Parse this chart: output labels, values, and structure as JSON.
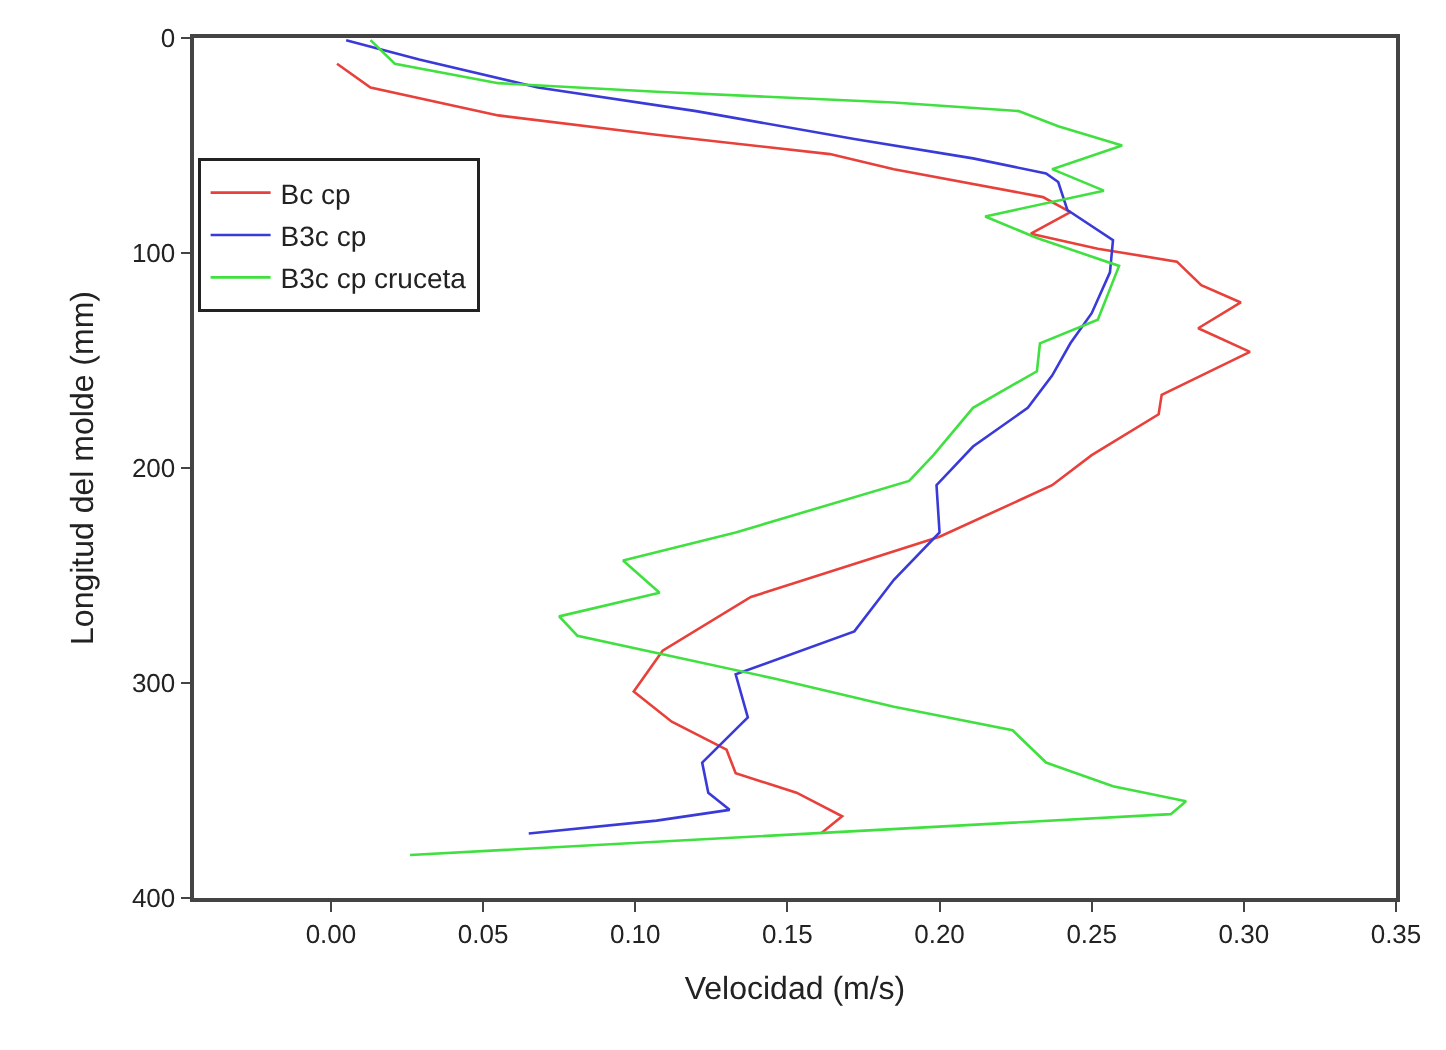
{
  "chart_data": {
    "type": "line",
    "xlabel": "Velocidad (m/s)",
    "ylabel": "Longitud del molde (mm)",
    "xlim": [
      -0.045,
      0.35
    ],
    "xticks": [
      {
        "value": 0,
        "label": "0.00"
      },
      {
        "value": 0.05,
        "label": "0.05"
      },
      {
        "value": 0.1,
        "label": "0.10"
      },
      {
        "value": 0.15,
        "label": "0.15"
      },
      {
        "value": 0.2,
        "label": "0.20"
      },
      {
        "value": 0.25,
        "label": "0.25"
      },
      {
        "value": 0.3,
        "label": "0.30"
      },
      {
        "value": 0.35,
        "label": "0.35"
      }
    ],
    "ylim": [
      400,
      0
    ],
    "yticks": [
      0,
      100,
      200,
      300,
      400
    ],
    "legend": "top left",
    "marker": "none",
    "line_style": "solid",
    "series": [
      {
        "name": "Bc cp",
        "color": "#e8403a",
        "x": [
          0.002,
          0.013,
          0.055,
          0.107,
          0.164,
          0.185,
          0.234,
          0.243,
          0.23,
          0.252,
          0.278,
          0.286,
          0.299,
          0.285,
          0.302,
          0.273,
          0.272,
          0.25,
          0.237,
          0.2,
          0.138,
          0.109,
          0.0995,
          0.112,
          0.13,
          0.133,
          0.153,
          0.168,
          0.161
        ],
        "values": [
          12,
          23,
          36,
          45,
          54,
          61,
          74,
          81,
          91,
          98,
          104,
          115,
          123,
          135,
          146,
          166,
          175,
          194,
          208,
          232,
          260,
          285,
          304,
          318,
          331,
          342,
          351,
          362,
          370
        ]
      },
      {
        "name": "B3c cp",
        "color": "#3a3ad8",
        "x": [
          0.005,
          0.029,
          0.068,
          0.12,
          0.172,
          0.211,
          0.235,
          0.239,
          0.242,
          0.257,
          0.256,
          0.25,
          0.243,
          0.237,
          0.229,
          0.211,
          0.199,
          0.2,
          0.185,
          0.172,
          0.133,
          0.137,
          0.122,
          0.124,
          0.131,
          0.107,
          0.065
        ],
        "values": [
          1,
          10,
          23,
          34,
          47,
          56,
          63,
          67,
          80,
          94,
          109,
          128,
          142,
          157,
          172,
          190,
          208,
          230,
          252,
          276,
          296,
          316,
          337,
          351,
          359,
          364,
          370
        ]
      },
      {
        "name": "B3c cp cruceta",
        "color": "#40e040",
        "x": [
          0.013,
          0.021,
          0.055,
          0.107,
          0.185,
          0.226,
          0.239,
          0.26,
          0.237,
          0.254,
          0.215,
          0.232,
          0.259,
          0.254,
          0.252,
          0.233,
          0.232,
          0.211,
          0.198,
          0.19,
          0.133,
          0.096,
          0.108,
          0.075,
          0.081,
          0.146,
          0.185,
          0.224,
          0.235,
          0.257,
          0.281,
          0.276,
          0.026
        ],
        "values": [
          1,
          12,
          21,
          25,
          30,
          34,
          41,
          50,
          61,
          71,
          83,
          93,
          106,
          124,
          131,
          142,
          155,
          172,
          194,
          206,
          230,
          243,
          258,
          269,
          278,
          298,
          311,
          322,
          337,
          348,
          355,
          361,
          380
        ]
      }
    ]
  }
}
